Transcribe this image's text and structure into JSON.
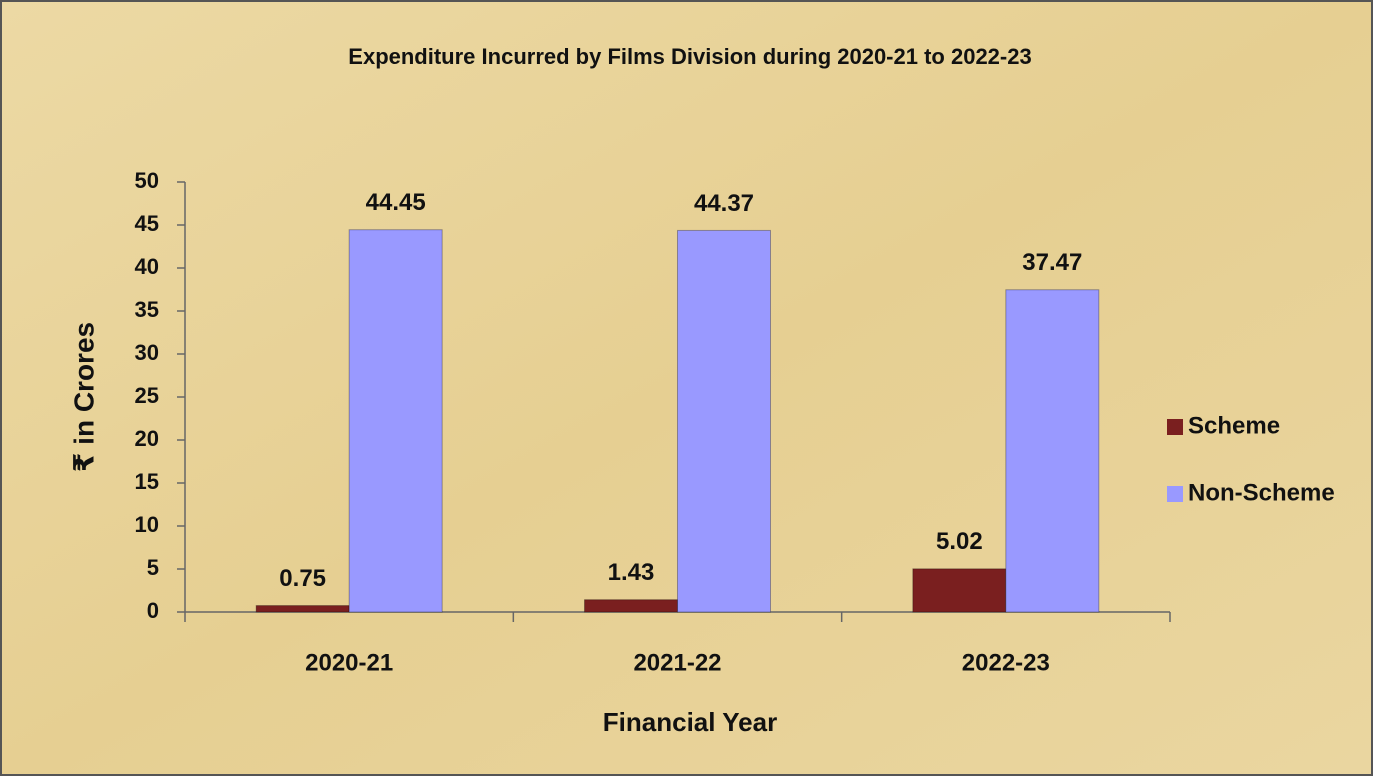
{
  "chart_data": {
    "type": "bar",
    "title": "Expenditure Incurred by Films Division during 2020-21 to 2022-23",
    "x_label": "Financial Year",
    "y_label": "₹ in Crores",
    "categories": [
      "2020-21",
      "2021-22",
      "2022-23"
    ],
    "series": [
      {
        "name": "Scheme",
        "color": "#7a1f1f",
        "values": [
          0.75,
          1.43,
          5.02
        ]
      },
      {
        "name": "Non-Scheme",
        "color": "#9999ff",
        "values": [
          44.45,
          44.37,
          37.47
        ]
      }
    ],
    "ylim": [
      0,
      50
    ],
    "yticks": [
      0,
      5,
      10,
      15,
      20,
      25,
      30,
      35,
      40,
      45,
      50
    ],
    "legend": "right"
  }
}
